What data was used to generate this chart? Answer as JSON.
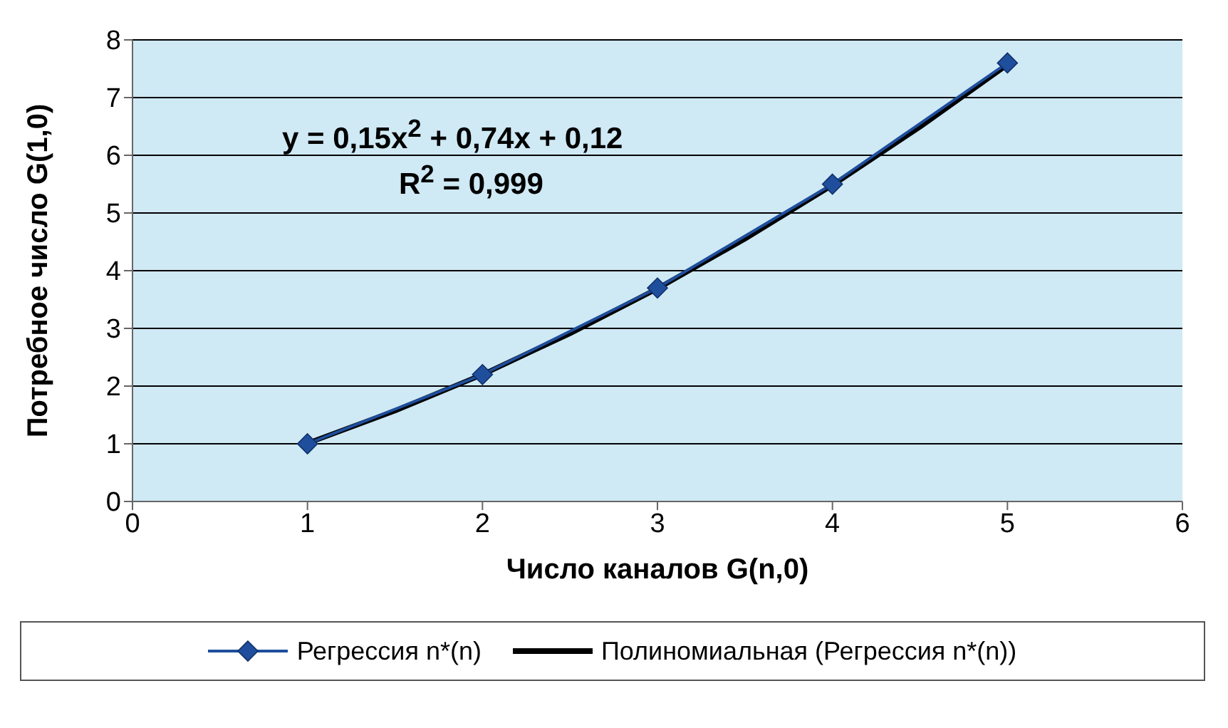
{
  "chart_data": {
    "type": "line",
    "xlabel": "Число каналов G(n,0)",
    "ylabel": "Потребное число G(1,0)",
    "xlim": [
      0,
      6
    ],
    "xticks": [
      0,
      1,
      2,
      3,
      4,
      5,
      6
    ],
    "ylim": [
      0,
      8
    ],
    "yticks": [
      0,
      1,
      2,
      3,
      4,
      5,
      6,
      7,
      8
    ],
    "grid": "y",
    "legend": "bottom",
    "marker": "diamond",
    "line_style": "solid",
    "annotations": [
      "y = 0,15x$^{2}$ + 0,74x + 0,12",
      "R$^{2}$ = 0,999"
    ],
    "series": [
      {
        "name": "Полиномиальная (Регрессия n*(n))",
        "color": "#000000",
        "marker": "none",
        "x": [
          1,
          1.5,
          2,
          2.5,
          3,
          3.5,
          4,
          4.5,
          5
        ],
        "values": [
          1.01,
          1.57,
          2.2,
          2.91,
          3.69,
          4.55,
          5.48,
          6.49,
          7.57
        ]
      },
      {
        "name": "Регрессия n*(n)",
        "color": "#1f4e9c",
        "x": [
          1,
          2,
          3,
          4,
          5
        ],
        "values": [
          1,
          2.2,
          3.7,
          5.5,
          7.6
        ]
      }
    ]
  }
}
